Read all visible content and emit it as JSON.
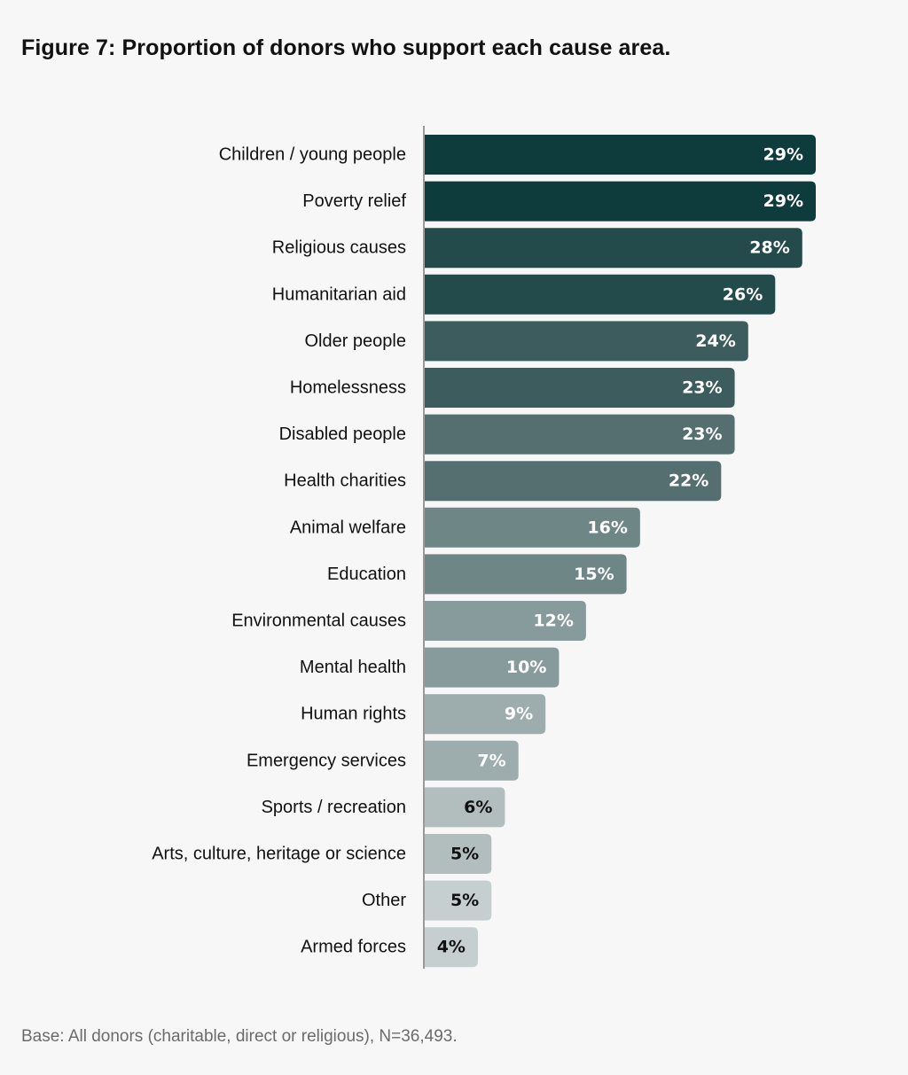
{
  "title": "Figure 7: Proportion of donors who support each cause area.",
  "footnote": "Base: All donors (charitable, direct or religious), N=36,493.",
  "chart_data": {
    "type": "bar",
    "orientation": "horizontal",
    "title": "Figure 7: Proportion of donors who support each cause area.",
    "xlabel": "",
    "ylabel": "",
    "unit": "%",
    "xlim": [
      0,
      30
    ],
    "grid": false,
    "legend": "none",
    "categories": [
      "Children / young people",
      "Poverty relief",
      "Religious causes",
      "Humanitarian aid",
      "Older people",
      "Homelessness",
      "Disabled people",
      "Health charities",
      "Animal welfare",
      "Education",
      "Environmental causes",
      "Mental health",
      "Human rights",
      "Emergency services",
      "Sports / recreation",
      "Arts, culture, heritage or science",
      "Other",
      "Armed forces"
    ],
    "values": [
      29,
      29,
      28,
      26,
      24,
      23,
      23,
      22,
      16,
      15,
      12,
      10,
      9,
      7,
      6,
      5,
      5,
      4
    ],
    "data_labels": [
      "29%",
      "29%",
      "28%",
      "26%",
      "24%",
      "23%",
      "23%",
      "22%",
      "16%",
      "15%",
      "12%",
      "10%",
      "9%",
      "7%",
      "6%",
      "5%",
      "5%",
      "4%"
    ],
    "bar_colors": [
      "#0e3b3c",
      "#0e3b3c",
      "#244b4c",
      "#244b4c",
      "#3d5c5d",
      "#3d5c5d",
      "#556f70",
      "#556f70",
      "#6f8687",
      "#6f8687",
      "#879b9c",
      "#879b9c",
      "#9dadad",
      "#9dadad",
      "#b2bebe",
      "#b2bebe",
      "#c6cfcf",
      "#c6cfcf"
    ],
    "label_colors": [
      "#ffffff",
      "#ffffff",
      "#ffffff",
      "#ffffff",
      "#ffffff",
      "#ffffff",
      "#ffffff",
      "#ffffff",
      "#ffffff",
      "#ffffff",
      "#ffffff",
      "#ffffff",
      "#ffffff",
      "#ffffff",
      "#111111",
      "#111111",
      "#111111",
      "#111111"
    ],
    "axis_color": "#999999"
  }
}
